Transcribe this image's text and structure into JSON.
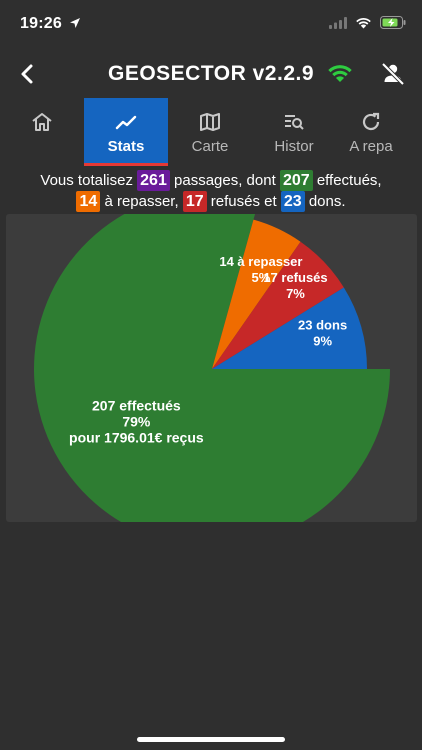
{
  "status_bar": {
    "time": "19:26"
  },
  "header": {
    "title": "GEOSECTOR v2.2.9"
  },
  "tabs": [
    {
      "label": "",
      "icon": "home-icon"
    },
    {
      "label": "Stats",
      "icon": "chart-line-icon",
      "active": true
    },
    {
      "label": "Carte",
      "icon": "map-icon"
    },
    {
      "label": "Histor",
      "icon": "history-search-icon"
    },
    {
      "label": "A repa",
      "icon": "refresh-icon"
    }
  ],
  "summary": {
    "t1": "Vous totalisez",
    "total": "261",
    "t2": "passages, dont",
    "done": "207",
    "t3": "effectués,",
    "repasser": "14",
    "t4": "à repasser,",
    "refused": "17",
    "t5": "refusés et",
    "dons": "23",
    "t6": "dons."
  },
  "chart_data": {
    "type": "pie",
    "slices": [
      {
        "label": "207 effectués",
        "value": 207,
        "percent": "79%",
        "extra": "pour 1796.01€ reçus",
        "color": "#2e7d32",
        "exploded": true
      },
      {
        "label": "14 à repasser",
        "value": 14,
        "percent": "5%",
        "color": "#ef6c00"
      },
      {
        "label": "17 refusés",
        "value": 17,
        "percent": "7%",
        "color": "#c62828"
      },
      {
        "label": "23 dons",
        "value": 23,
        "percent": "9%",
        "color": "#1565c0"
      }
    ]
  }
}
